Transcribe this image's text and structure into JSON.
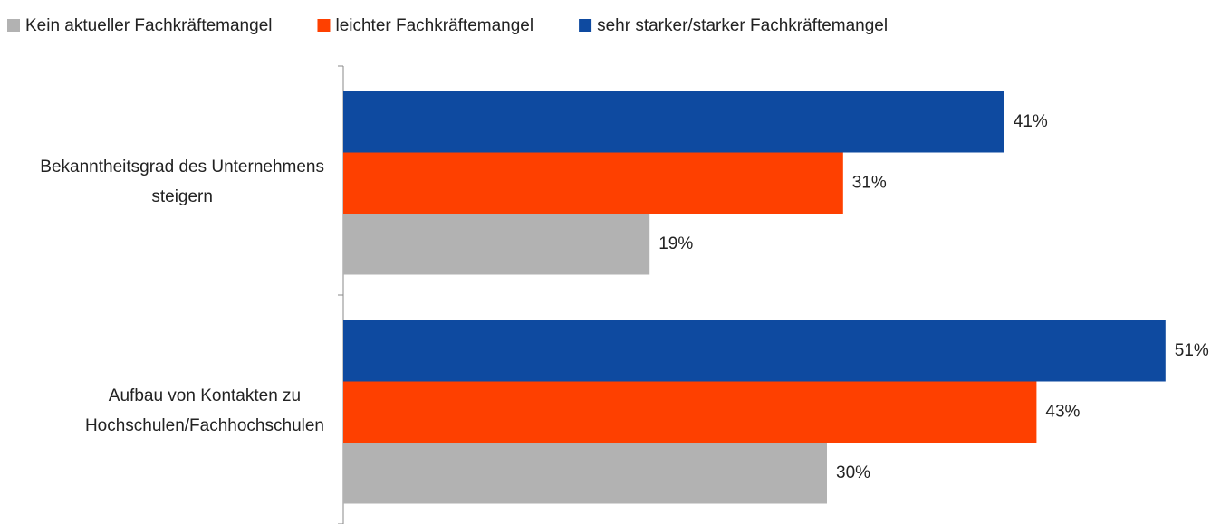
{
  "chart_data": {
    "type": "hbar",
    "categories": [
      [
        "Bekanntheitsgrad des Unternehmens",
        "steigern"
      ],
      [
        "Aufbau von Kontakten zu",
        "Hochschulen/Fachhochschulen"
      ]
    ],
    "series": [
      {
        "name": "Kein aktueller Fachkräftemangel",
        "color": "#b2b2b2",
        "values": [
          19,
          30
        ],
        "value_labels": [
          "19%",
          "30%"
        ]
      },
      {
        "name": "leichter Fachkräftemangel",
        "color": "#fe4000",
        "values": [
          31,
          43
        ],
        "value_labels": [
          "31%",
          "43%"
        ]
      },
      {
        "name": "sehr starker/starker Fachkräftemangel",
        "color": "#0e4aa0",
        "values": [
          41,
          51
        ],
        "value_labels": [
          "41%",
          "51%"
        ]
      }
    ],
    "xlim": [
      0,
      55
    ],
    "legend": "top"
  }
}
